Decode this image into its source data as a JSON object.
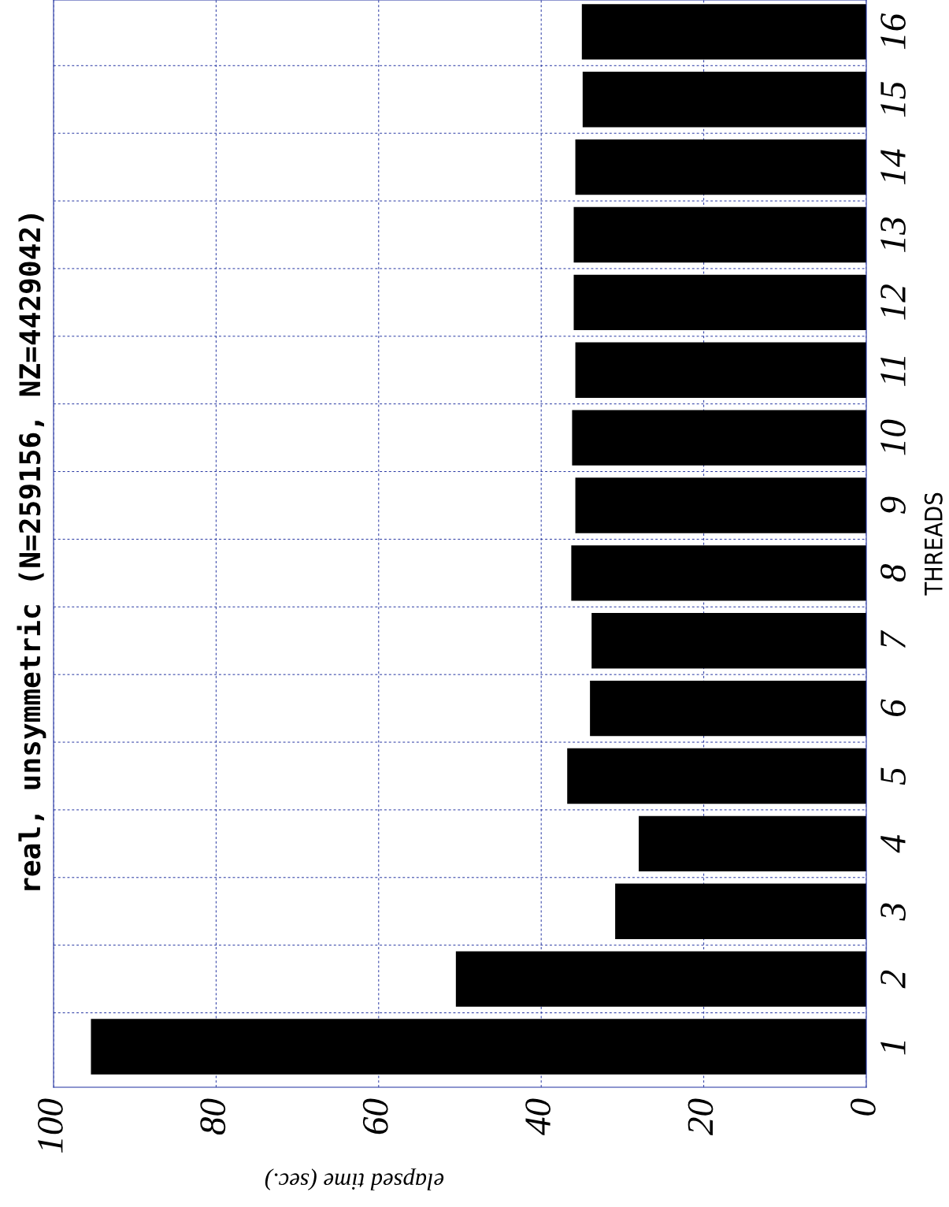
{
  "chart_data": {
    "type": "bar",
    "orientation": "horizontal",
    "title": "real, unsymmetric (N=259156, NZ=4429042)",
    "xlabel": "elapsed time (sec.)",
    "ylabel": "THREADS",
    "categories": [
      "16",
      "15",
      "14",
      "13",
      "12",
      "11",
      "10",
      "9",
      "8",
      "7",
      "6",
      "5",
      "4",
      "3",
      "2",
      "1"
    ],
    "values": [
      35.0,
      34.9,
      35.8,
      36.0,
      36.0,
      35.8,
      36.2,
      35.8,
      36.3,
      33.8,
      34.0,
      36.8,
      28.0,
      30.9,
      50.5,
      95.4
    ],
    "color": "#000000",
    "xlim": [
      100,
      0
    ],
    "xticks": [
      100,
      80,
      60,
      40,
      20,
      0
    ],
    "grid": true
  }
}
